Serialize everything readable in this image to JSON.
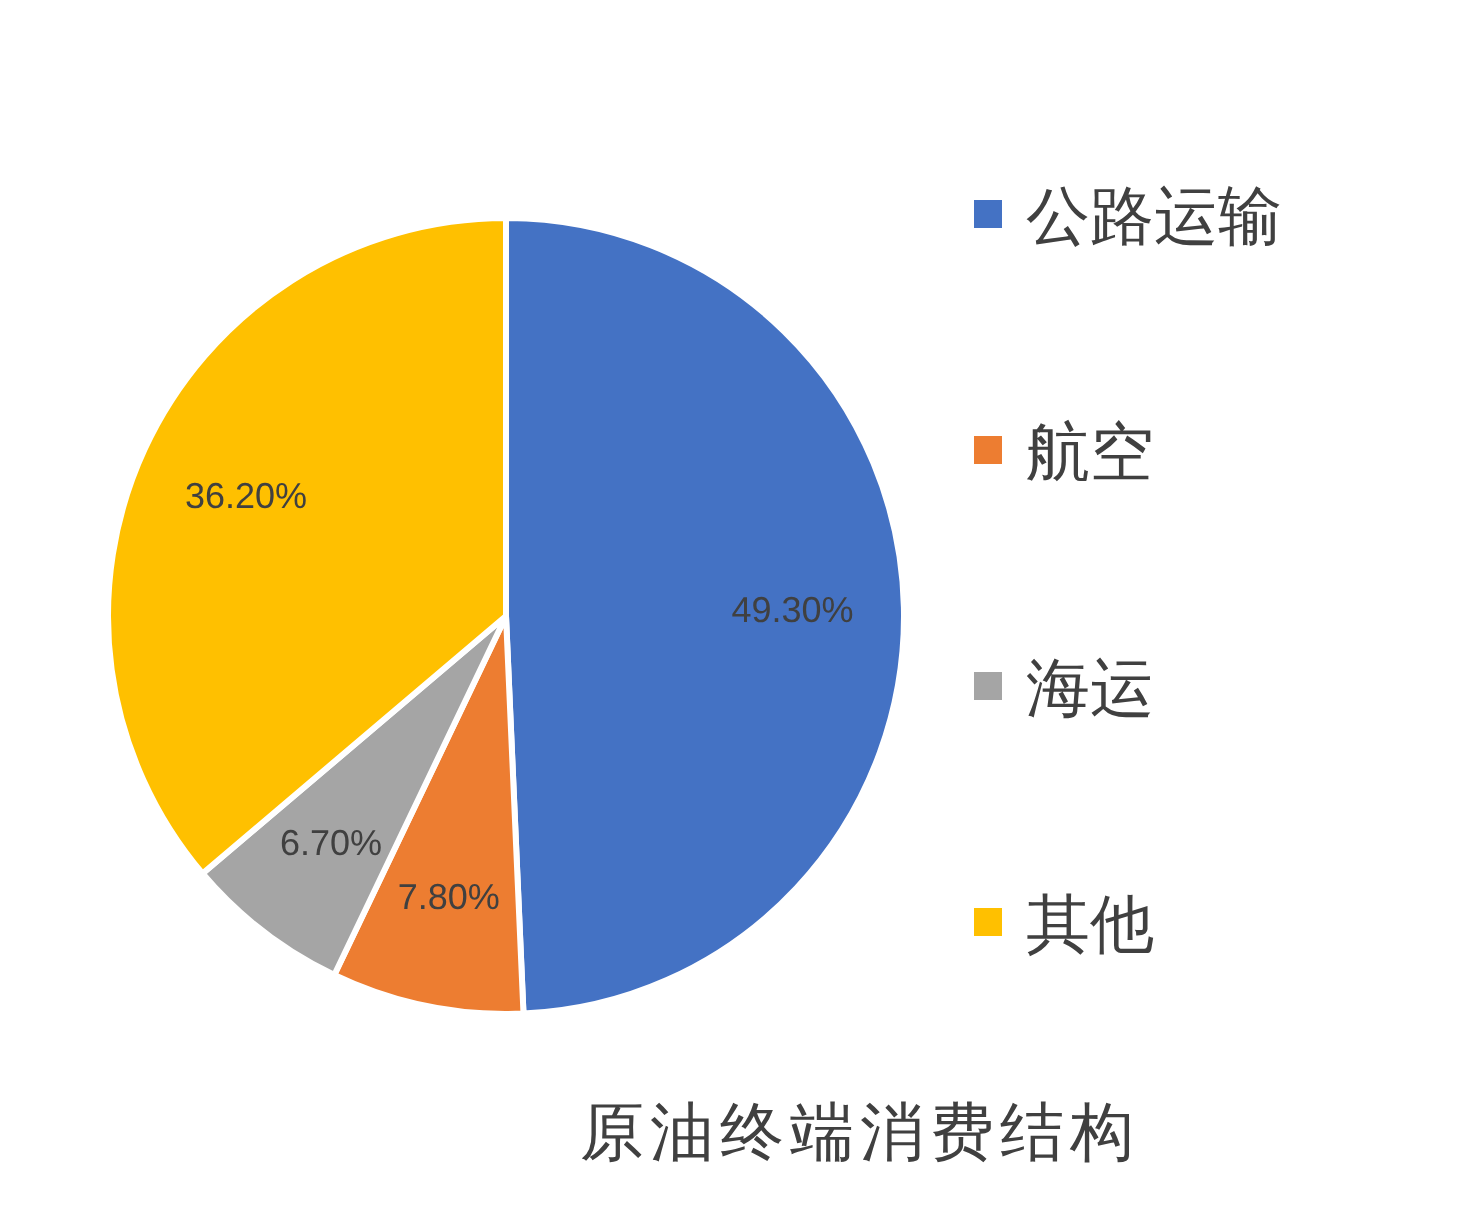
{
  "chart_data": {
    "type": "pie",
    "title": "原油终端消费结构",
    "categories": [
      "公路运输",
      "航空",
      "海运",
      "其他"
    ],
    "values": [
      49.3,
      7.8,
      6.7,
      36.2
    ],
    "colors": [
      "#4472c4",
      "#ed7d31",
      "#a5a5a5",
      "#ffc000"
    ],
    "value_labels": [
      "49.30%",
      "7.80%",
      "6.70%",
      "36.20%"
    ],
    "legend": "right"
  }
}
